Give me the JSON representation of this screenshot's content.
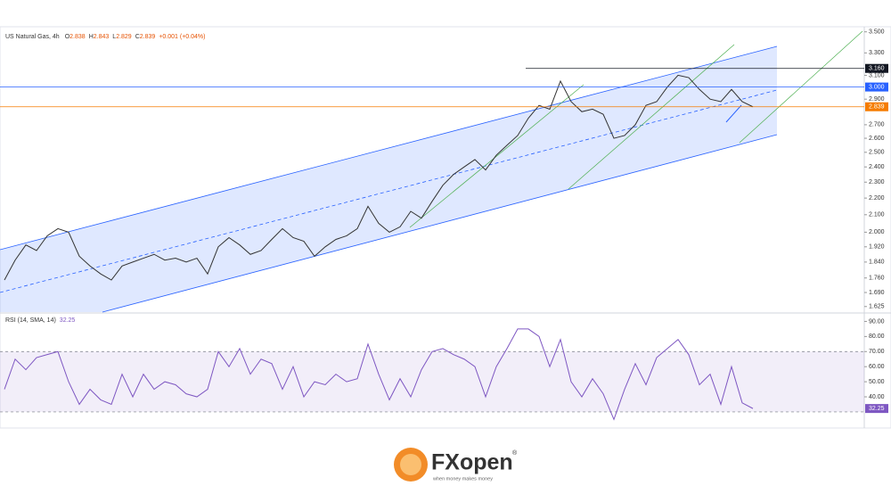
{
  "header": {
    "title": "US Natural Gas, 4h",
    "ohlc": [
      {
        "label": "O",
        "value": "2.838"
      },
      {
        "label": "H",
        "value": "2.843"
      },
      {
        "label": "L",
        "value": "2.829"
      },
      {
        "label": "C",
        "value": "2.839"
      }
    ],
    "change": "+0.001 (+0.04%)"
  },
  "chart_data": [
    {
      "type": "line",
      "title": "US Natural Gas",
      "color": "#333333",
      "log": true,
      "values": [
        1.75,
        1.85,
        1.93,
        1.9,
        1.98,
        2.02,
        2.0,
        1.87,
        1.82,
        1.78,
        1.75,
        1.82,
        1.84,
        1.86,
        1.88,
        1.85,
        1.86,
        1.84,
        1.86,
        1.78,
        1.92,
        1.97,
        1.93,
        1.88,
        1.9,
        1.96,
        2.02,
        1.97,
        1.95,
        1.87,
        1.92,
        1.96,
        1.98,
        2.02,
        2.15,
        2.05,
        2.0,
        2.03,
        2.12,
        2.08,
        2.18,
        2.28,
        2.35,
        2.4,
        2.45,
        2.38,
        2.48,
        2.55,
        2.62,
        2.75,
        2.85,
        2.82,
        3.05,
        2.88,
        2.8,
        2.82,
        2.78,
        2.6,
        2.62,
        2.7,
        2.85,
        2.88,
        3.0,
        3.1,
        3.08,
        2.98,
        2.9,
        2.88,
        2.98,
        2.88,
        2.839
      ],
      "ylim": [
        1.6,
        3.55
      ],
      "yticks": [
        {
          "value": 1.625,
          "label": "1.625"
        },
        {
          "value": 1.69,
          "label": "1.690"
        },
        {
          "value": 1.76,
          "label": "1.760"
        },
        {
          "value": 1.84,
          "label": "1.840"
        },
        {
          "value": 1.92,
          "label": "1.920"
        },
        {
          "value": 2.0,
          "label": "2.000"
        },
        {
          "value": 2.1,
          "label": "2.100"
        },
        {
          "value": 2.2,
          "label": "2.200"
        },
        {
          "value": 2.3,
          "label": "2.300"
        },
        {
          "value": 2.4,
          "label": "2.400"
        },
        {
          "value": 2.5,
          "label": "2.500"
        },
        {
          "value": 2.6,
          "label": "2.600"
        },
        {
          "value": 2.7,
          "label": "2.700"
        },
        {
          "value": 2.9,
          "label": "2.900"
        },
        {
          "value": 3.1,
          "label": "3.100"
        },
        {
          "value": 3.3,
          "label": "3.300"
        },
        {
          "value": 3.5,
          "label": "3.500"
        }
      ],
      "levels": [
        {
          "value": 3.16,
          "label": "3.160",
          "color": "#131722"
        },
        {
          "value": 3.0,
          "label": "3.000",
          "color": "#2962ff"
        },
        {
          "value": 2.839,
          "label": "2.839",
          "color": "#f57c00"
        }
      ]
    },
    {
      "type": "line",
      "title": "RSI (14, SMA, 14)",
      "current": 32.25,
      "color": "#7e57c2",
      "values": [
        45,
        65,
        58,
        66,
        68,
        70,
        50,
        35,
        45,
        38,
        35,
        55,
        40,
        55,
        45,
        50,
        48,
        42,
        40,
        45,
        70,
        60,
        72,
        55,
        65,
        62,
        45,
        60,
        40,
        50,
        48,
        55,
        50,
        52,
        75,
        55,
        38,
        52,
        40,
        58,
        70,
        72,
        68,
        65,
        60,
        40,
        60,
        72,
        85,
        85,
        80,
        60,
        78,
        50,
        40,
        52,
        42,
        25,
        45,
        62,
        48,
        66,
        72,
        78,
        68,
        48,
        55,
        35,
        60,
        36,
        32.25
      ],
      "ylim": [
        20.5,
        95
      ],
      "yticks": [
        {
          "value": 40,
          "label": "40.00"
        },
        {
          "value": 50,
          "label": "50.00"
        },
        {
          "value": 60,
          "label": "60.00"
        },
        {
          "value": 70,
          "label": "70.00"
        },
        {
          "value": 80,
          "label": "80.00"
        },
        {
          "value": 90,
          "label": "90.00"
        }
      ],
      "band": [
        30,
        70
      ]
    }
  ],
  "branding": {
    "logo": "FXopen",
    "registered": "®",
    "tagline": "when money makes money"
  }
}
